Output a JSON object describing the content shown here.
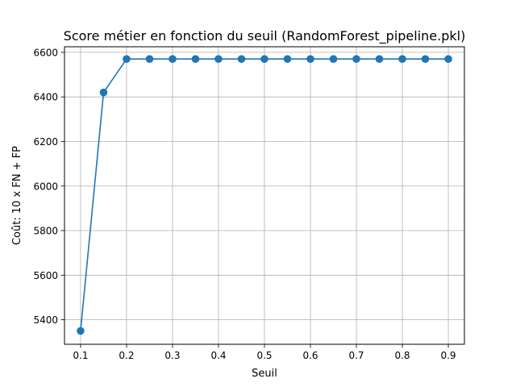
{
  "chart_data": {
    "type": "line",
    "title": "Score métier en fonction du seuil (RandomForest_pipeline.pkl)",
    "xlabel": "Seuil",
    "ylabel": "Coût: 10 x FN + FP",
    "xlim": [
      0.065,
      0.935
    ],
    "ylim": [
      5290,
      6625
    ],
    "xticks": [
      0.1,
      0.2,
      0.3,
      0.4,
      0.5,
      0.6,
      0.7,
      0.8,
      0.9
    ],
    "xtick_labels": [
      "0.1",
      "0.2",
      "0.3",
      "0.4",
      "0.5",
      "0.6",
      "0.7",
      "0.8",
      "0.9"
    ],
    "yticks": [
      5400,
      5600,
      5800,
      6000,
      6200,
      6400,
      6600
    ],
    "ytick_labels": [
      "5400",
      "5600",
      "5800",
      "6000",
      "6200",
      "6400",
      "6600"
    ],
    "grid": true,
    "series": [
      {
        "color": "#1f77b4",
        "marker": "circle",
        "x": [
          0.1,
          0.15,
          0.2,
          0.25,
          0.3,
          0.35,
          0.4,
          0.45,
          0.5,
          0.55,
          0.6,
          0.65,
          0.7,
          0.75,
          0.8,
          0.85,
          0.9
        ],
        "y": [
          5350,
          6420,
          6570,
          6570,
          6570,
          6570,
          6570,
          6570,
          6570,
          6570,
          6570,
          6570,
          6570,
          6570,
          6570,
          6570,
          6570
        ]
      }
    ]
  }
}
